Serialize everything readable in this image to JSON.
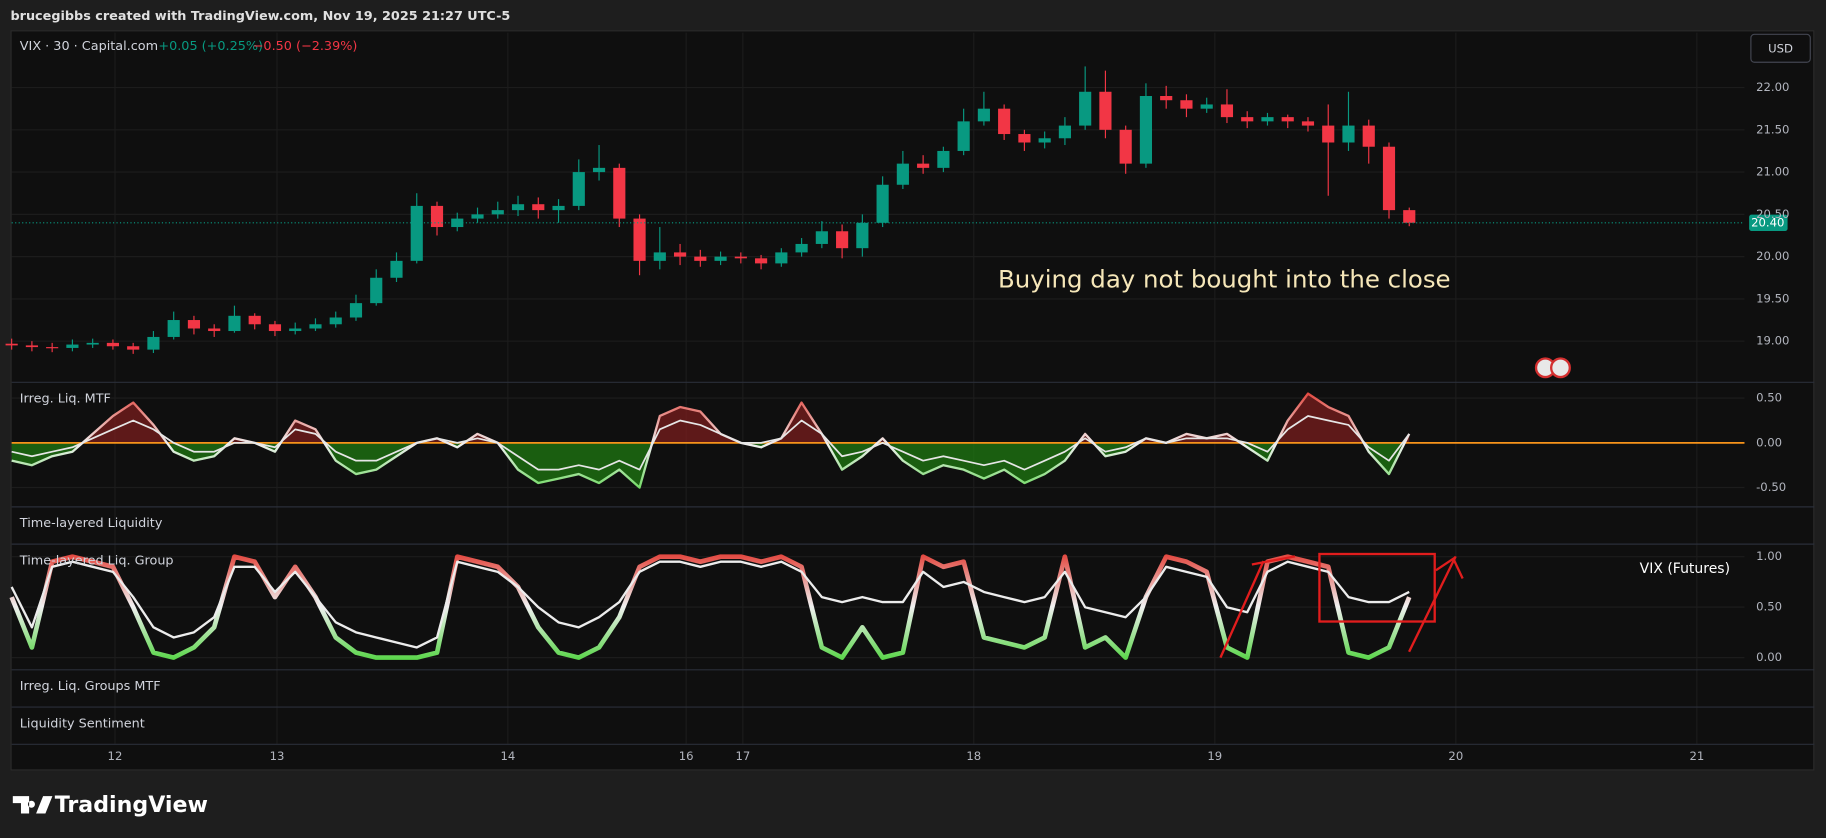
{
  "header": {
    "credit": "brucegibbs created with TradingView.com, Nov 19, 2025 21:27 UTC-5"
  },
  "chart_data": [
    {
      "type": "candlestick",
      "title": "VIX · 30 · Capital.com",
      "changes": [
        "+0.05 (+0.25%)",
        "−0.50 (−2.39%)"
      ],
      "currency": "USD",
      "annotation": "Buying day not bought into the close",
      "up_color": "#089981",
      "down_color": "#f23645",
      "grid": true,
      "x": [
        0,
        1,
        2,
        3,
        4,
        5,
        6,
        7,
        8,
        9,
        10,
        11,
        12,
        13,
        14,
        15,
        16,
        17,
        18,
        19,
        20,
        21,
        22,
        23,
        24,
        25,
        26,
        27,
        28,
        29,
        30,
        31,
        32,
        33,
        34,
        35,
        36,
        37,
        38,
        39,
        40,
        41,
        42,
        43,
        44,
        45,
        46,
        47,
        48,
        49,
        50,
        51,
        52,
        53,
        54,
        55,
        56,
        57,
        58,
        59,
        60,
        61,
        62,
        63,
        64,
        65,
        66,
        67,
        68,
        69
      ],
      "open": [
        18.97,
        18.95,
        18.93,
        18.92,
        18.96,
        18.98,
        18.94,
        18.9,
        19.05,
        19.25,
        19.15,
        19.12,
        19.3,
        19.2,
        19.12,
        19.15,
        19.2,
        19.28,
        19.45,
        19.75,
        19.95,
        20.6,
        20.35,
        20.45,
        20.5,
        20.55,
        20.62,
        20.55,
        20.6,
        21.0,
        21.05,
        20.45,
        19.95,
        20.05,
        20.0,
        19.95,
        20.0,
        19.98,
        19.92,
        20.05,
        20.15,
        20.3,
        20.1,
        20.4,
        20.85,
        21.1,
        21.05,
        21.25,
        21.6,
        21.75,
        21.45,
        21.35,
        21.4,
        21.55,
        21.95,
        21.5,
        21.1,
        21.9,
        21.85,
        21.75,
        21.8,
        21.65,
        21.6,
        21.65,
        21.6,
        21.55,
        21.35,
        21.55,
        21.3,
        20.55
      ],
      "high": [
        19.03,
        19.0,
        18.98,
        19.02,
        19.03,
        19.02,
        18.98,
        19.12,
        19.35,
        19.3,
        19.2,
        19.42,
        19.33,
        19.24,
        19.22,
        19.27,
        19.35,
        19.55,
        19.85,
        20.05,
        20.75,
        20.65,
        20.52,
        20.58,
        20.65,
        20.72,
        20.7,
        20.68,
        21.15,
        21.32,
        21.1,
        20.5,
        20.35,
        20.15,
        20.08,
        20.06,
        20.05,
        20.02,
        20.1,
        20.22,
        20.42,
        20.38,
        20.5,
        20.95,
        21.25,
        21.2,
        21.3,
        21.75,
        21.95,
        21.8,
        21.5,
        21.48,
        21.65,
        22.25,
        22.2,
        21.55,
        22.05,
        22.02,
        21.92,
        21.88,
        21.98,
        21.72,
        21.7,
        21.68,
        21.65,
        21.8,
        21.95,
        21.62,
        21.35,
        20.58
      ],
      "low": [
        18.9,
        18.88,
        18.87,
        18.88,
        18.92,
        18.9,
        18.85,
        18.86,
        19.02,
        19.08,
        19.05,
        19.1,
        19.14,
        19.06,
        19.08,
        19.12,
        19.16,
        19.24,
        19.42,
        19.7,
        19.92,
        20.25,
        20.3,
        20.4,
        20.45,
        20.48,
        20.45,
        20.4,
        20.55,
        20.9,
        20.35,
        19.78,
        19.85,
        19.9,
        19.88,
        19.9,
        19.92,
        19.85,
        19.88,
        20.0,
        20.1,
        19.98,
        20.0,
        20.35,
        20.8,
        20.98,
        21.0,
        21.2,
        21.55,
        21.38,
        21.25,
        21.28,
        21.32,
        21.5,
        21.4,
        20.98,
        21.05,
        21.75,
        21.65,
        21.7,
        21.58,
        21.52,
        21.55,
        21.52,
        21.48,
        20.72,
        21.25,
        21.1,
        20.45,
        20.36
      ],
      "close": [
        18.95,
        18.93,
        18.92,
        18.96,
        18.98,
        18.94,
        18.9,
        19.05,
        19.25,
        19.15,
        19.12,
        19.3,
        19.2,
        19.12,
        19.15,
        19.2,
        19.28,
        19.45,
        19.75,
        19.95,
        20.6,
        20.35,
        20.45,
        20.5,
        20.55,
        20.62,
        20.55,
        20.6,
        21.0,
        21.05,
        20.45,
        19.95,
        20.05,
        20.0,
        19.95,
        20.0,
        19.98,
        19.92,
        20.05,
        20.15,
        20.3,
        20.1,
        20.4,
        20.85,
        21.1,
        21.05,
        21.25,
        21.6,
        21.75,
        21.45,
        21.35,
        21.4,
        21.55,
        21.95,
        21.5,
        21.1,
        21.9,
        21.85,
        21.75,
        21.8,
        21.65,
        21.6,
        21.65,
        21.6,
        21.55,
        21.35,
        21.55,
        21.3,
        20.55,
        20.4
      ],
      "last_price": 20.4,
      "last_price_label": "20.40",
      "xlim": [
        0,
        89
      ],
      "xticks": [
        {
          "value": 5.1,
          "label": "12"
        },
        {
          "value": 13.1,
          "label": "13"
        },
        {
          "value": 24.5,
          "label": "14"
        },
        {
          "value": 33.3,
          "label": "16"
        },
        {
          "value": 36.1,
          "label": "17"
        },
        {
          "value": 47.5,
          "label": "18"
        },
        {
          "value": 59.4,
          "label": "19"
        },
        {
          "value": 71.3,
          "label": "20"
        },
        {
          "value": 83.2,
          "label": "21"
        }
      ],
      "ylim": [
        18.52,
        22.65
      ],
      "yticks": [
        {
          "value": 19,
          "label": "19.00"
        },
        {
          "value": 19.5,
          "label": "19.50"
        },
        {
          "value": 20,
          "label": "20.00"
        },
        {
          "value": 20.5,
          "label": "20.50"
        },
        {
          "value": 21,
          "label": "21.00"
        },
        {
          "value": 21.5,
          "label": "21.50"
        },
        {
          "value": 22,
          "label": "22.00"
        }
      ]
    },
    {
      "type": "line",
      "title": "Irreg. Liq. MTF",
      "grid": true,
      "fill": true,
      "baseline": 0,
      "baseline_color": "#f7931a",
      "fill_colors": [
        "#1f7a12",
        "#7a1e1e"
      ],
      "ylim": [
        -0.71,
        0.67
      ],
      "yticks": [
        {
          "value": 0.5,
          "label": "0.50"
        },
        {
          "value": 0,
          "label": "0.00"
        },
        {
          "value": -0.5,
          "label": "-0.50"
        }
      ],
      "series": [
        {
          "colors": [
            "#3fd12c",
            "#f0f0f0",
            "#e0281e"
          ],
          "values": [
            -0.2,
            -0.25,
            -0.15,
            -0.1,
            0.1,
            0.3,
            0.45,
            0.2,
            -0.1,
            -0.2,
            -0.15,
            0.05,
            0.0,
            -0.1,
            0.25,
            0.15,
            -0.2,
            -0.35,
            -0.3,
            -0.15,
            0.0,
            0.05,
            -0.05,
            0.1,
            0.0,
            -0.3,
            -0.45,
            -0.4,
            -0.35,
            -0.45,
            -0.3,
            -0.5,
            0.3,
            0.4,
            0.35,
            0.1,
            0.0,
            -0.05,
            0.05,
            0.45,
            0.1,
            -0.3,
            -0.15,
            0.05,
            -0.2,
            -0.35,
            -0.25,
            -0.3,
            -0.4,
            -0.3,
            -0.45,
            -0.35,
            -0.2,
            0.1,
            -0.15,
            -0.1,
            0.05,
            0.0,
            0.1,
            0.05,
            0.1,
            -0.05,
            -0.2,
            0.25,
            0.55,
            0.4,
            0.3,
            -0.1,
            -0.35,
            0.1
          ]
        },
        {
          "color": "#e6e6e6",
          "values": [
            -0.1,
            -0.15,
            -0.1,
            -0.05,
            0.05,
            0.15,
            0.25,
            0.15,
            0.0,
            -0.1,
            -0.1,
            0.0,
            0.0,
            -0.05,
            0.15,
            0.1,
            -0.1,
            -0.2,
            -0.2,
            -0.1,
            0.0,
            0.05,
            0.0,
            0.05,
            0.0,
            -0.15,
            -0.3,
            -0.3,
            -0.25,
            -0.3,
            -0.2,
            -0.3,
            0.15,
            0.25,
            0.2,
            0.1,
            0.0,
            0.0,
            0.05,
            0.25,
            0.1,
            -0.15,
            -0.1,
            0.0,
            -0.1,
            -0.2,
            -0.15,
            -0.2,
            -0.25,
            -0.2,
            -0.3,
            -0.2,
            -0.1,
            0.05,
            -0.1,
            -0.05,
            0.05,
            0.0,
            0.05,
            0.05,
            0.05,
            0.0,
            -0.1,
            0.15,
            0.3,
            0.25,
            0.2,
            -0.05,
            -0.2,
            0.1
          ]
        }
      ]
    },
    {
      "type": "line",
      "title": "Time-layered Liq. Group",
      "annotation": "VIX (Futures)",
      "grid": true,
      "ylim": [
        -0.115,
        1.13
      ],
      "yticks": [
        {
          "value": 1,
          "label": "1.00"
        },
        {
          "value": 0.5,
          "label": "0.50"
        },
        {
          "value": 0,
          "label": "0.00"
        }
      ],
      "series": [
        {
          "colors": [
            "#3fd12c",
            "#f0f0f0",
            "#e0241a"
          ],
          "values": [
            0.6,
            0.1,
            0.95,
            1.0,
            0.95,
            0.9,
            0.5,
            0.05,
            0.0,
            0.1,
            0.3,
            1.0,
            0.95,
            0.6,
            0.9,
            0.6,
            0.2,
            0.05,
            0.0,
            0.0,
            0.0,
            0.05,
            1.0,
            0.95,
            0.9,
            0.7,
            0.3,
            0.05,
            0.0,
            0.1,
            0.4,
            0.9,
            1.0,
            1.0,
            0.95,
            1.0,
            1.0,
            0.95,
            1.0,
            0.9,
            0.1,
            0.0,
            0.3,
            0.0,
            0.05,
            1.0,
            0.9,
            0.95,
            0.2,
            0.15,
            0.1,
            0.2,
            1.0,
            0.1,
            0.2,
            0.0,
            0.6,
            1.0,
            0.95,
            0.85,
            0.1,
            0.0,
            0.95,
            1.0,
            0.95,
            0.9,
            0.05,
            0.0,
            0.1,
            0.6
          ]
        },
        {
          "color": "#ececec",
          "values": [
            0.7,
            0.3,
            0.9,
            0.95,
            0.9,
            0.85,
            0.6,
            0.3,
            0.2,
            0.25,
            0.4,
            0.9,
            0.9,
            0.65,
            0.85,
            0.6,
            0.35,
            0.25,
            0.2,
            0.15,
            0.1,
            0.2,
            0.95,
            0.9,
            0.85,
            0.7,
            0.5,
            0.35,
            0.3,
            0.4,
            0.55,
            0.85,
            0.95,
            0.95,
            0.9,
            0.95,
            0.95,
            0.9,
            0.95,
            0.85,
            0.6,
            0.55,
            0.6,
            0.55,
            0.55,
            0.85,
            0.7,
            0.75,
            0.65,
            0.6,
            0.55,
            0.6,
            0.85,
            0.5,
            0.45,
            0.4,
            0.6,
            0.9,
            0.85,
            0.8,
            0.5,
            0.45,
            0.85,
            0.95,
            0.9,
            0.85,
            0.6,
            0.55,
            0.55,
            0.65
          ]
        }
      ]
    }
  ],
  "empty_panes": [
    "Time-layered Liquidity",
    "Irreg. Liq. Groups MTF",
    "Liquidity Sentiment"
  ],
  "footer": {
    "logo_text": "TradingView"
  }
}
